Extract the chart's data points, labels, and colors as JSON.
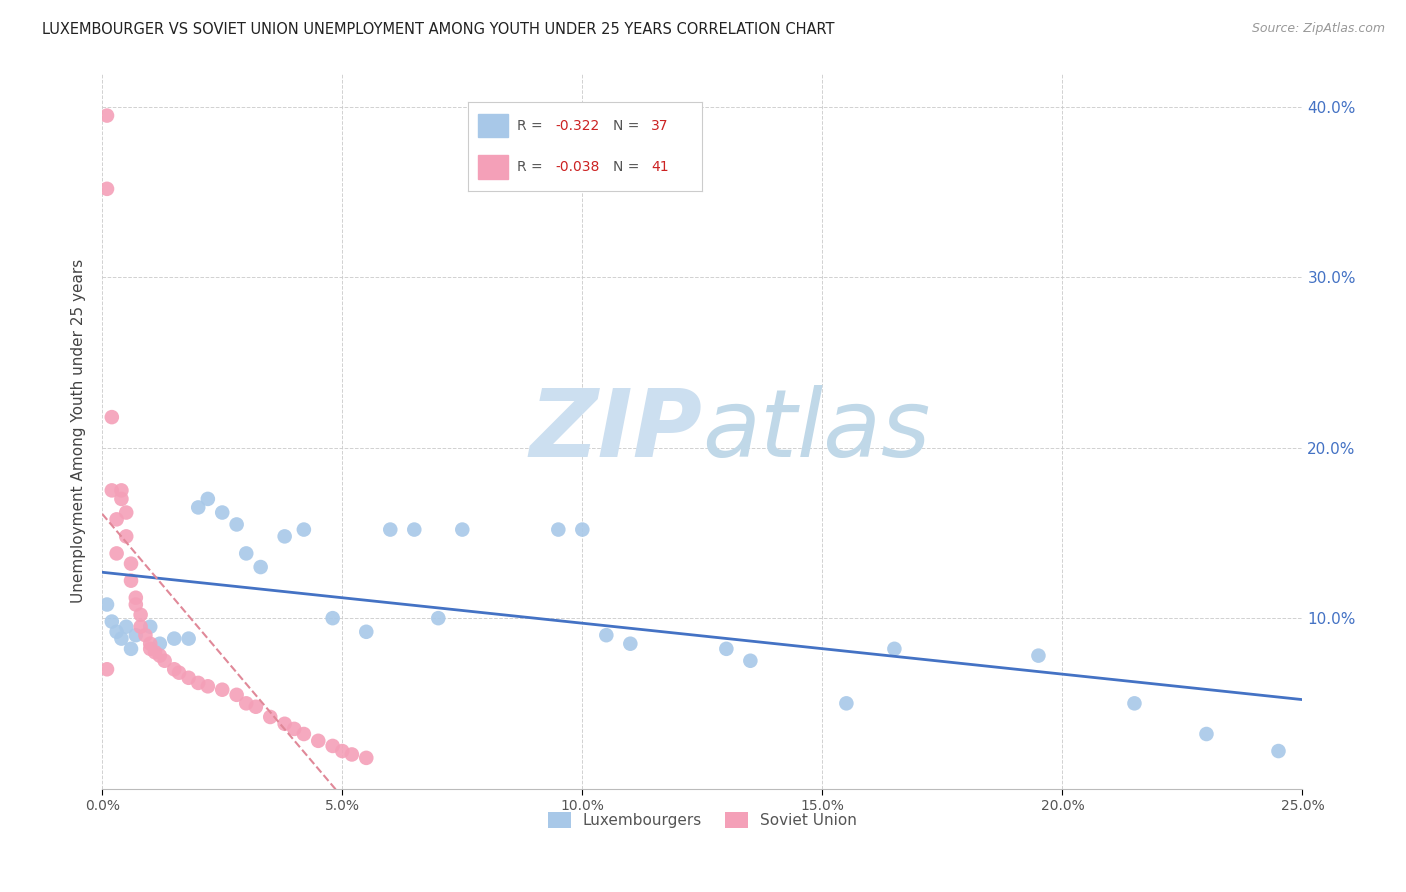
{
  "title": "LUXEMBOURGER VS SOVIET UNION UNEMPLOYMENT AMONG YOUTH UNDER 25 YEARS CORRELATION CHART",
  "source": "Source: ZipAtlas.com",
  "ylabel": "Unemployment Among Youth under 25 years",
  "xlim": [
    0.0,
    0.25
  ],
  "ylim": [
    0.0,
    0.42
  ],
  "x_ticks": [
    0.0,
    0.05,
    0.1,
    0.15,
    0.2,
    0.25
  ],
  "y_ticks": [
    0.1,
    0.2,
    0.3,
    0.4
  ],
  "lux_color": "#a8c8e8",
  "sov_color": "#f4a0b8",
  "lux_line_color": "#4472c4",
  "sov_line_color": "#e08898",
  "lux_R": -0.322,
  "lux_N": 37,
  "sov_R": -0.038,
  "sov_N": 41,
  "lux_scatter_x": [
    0.001,
    0.002,
    0.003,
    0.004,
    0.005,
    0.006,
    0.007,
    0.01,
    0.012,
    0.015,
    0.018,
    0.02,
    0.022,
    0.025,
    0.028,
    0.03,
    0.033,
    0.038,
    0.042,
    0.048,
    0.055,
    0.06,
    0.065,
    0.07,
    0.075,
    0.095,
    0.1,
    0.105,
    0.11,
    0.13,
    0.135,
    0.155,
    0.165,
    0.195,
    0.215,
    0.23,
    0.245
  ],
  "lux_scatter_y": [
    0.108,
    0.098,
    0.092,
    0.088,
    0.095,
    0.082,
    0.09,
    0.095,
    0.085,
    0.088,
    0.088,
    0.165,
    0.17,
    0.162,
    0.155,
    0.138,
    0.13,
    0.148,
    0.152,
    0.1,
    0.092,
    0.152,
    0.152,
    0.1,
    0.152,
    0.152,
    0.152,
    0.09,
    0.085,
    0.082,
    0.075,
    0.05,
    0.082,
    0.078,
    0.05,
    0.032,
    0.022
  ],
  "sov_scatter_x": [
    0.001,
    0.001,
    0.001,
    0.002,
    0.002,
    0.003,
    0.003,
    0.004,
    0.004,
    0.005,
    0.005,
    0.006,
    0.006,
    0.007,
    0.007,
    0.008,
    0.008,
    0.009,
    0.01,
    0.01,
    0.011,
    0.012,
    0.013,
    0.015,
    0.016,
    0.018,
    0.02,
    0.022,
    0.025,
    0.028,
    0.03,
    0.032,
    0.035,
    0.038,
    0.04,
    0.042,
    0.045,
    0.048,
    0.05,
    0.052,
    0.055
  ],
  "sov_scatter_y": [
    0.395,
    0.352,
    0.07,
    0.218,
    0.175,
    0.158,
    0.138,
    0.175,
    0.17,
    0.162,
    0.148,
    0.132,
    0.122,
    0.112,
    0.108,
    0.102,
    0.095,
    0.09,
    0.085,
    0.082,
    0.08,
    0.078,
    0.075,
    0.07,
    0.068,
    0.065,
    0.062,
    0.06,
    0.058,
    0.055,
    0.05,
    0.048,
    0.042,
    0.038,
    0.035,
    0.032,
    0.028,
    0.025,
    0.022,
    0.02,
    0.018
  ],
  "background_color": "#ffffff",
  "grid_color": "#cccccc",
  "watermark_zip": "ZIP",
  "watermark_atlas": "atlas",
  "watermark_color_zip": "#ccdff0",
  "watermark_color_atlas": "#c8dce8"
}
